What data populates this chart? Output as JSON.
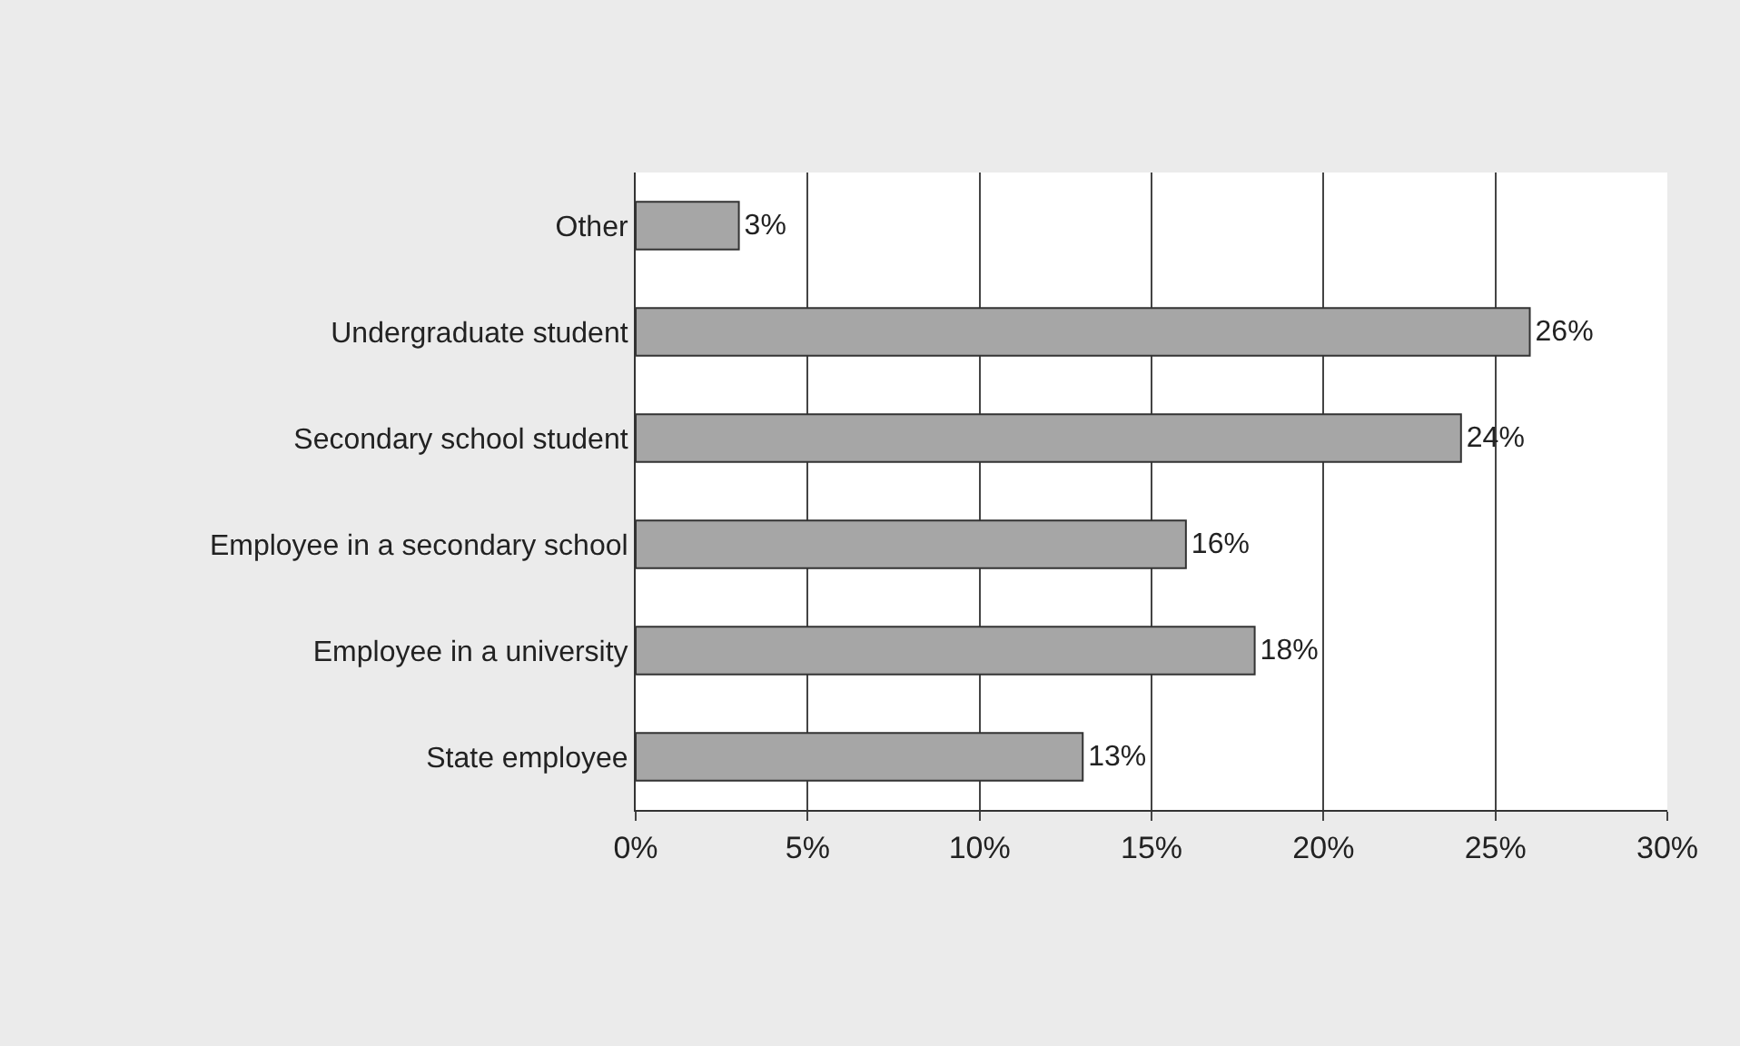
{
  "chart_data": {
    "type": "bar",
    "orientation": "horizontal",
    "categories": [
      "Other",
      "Undergraduate student",
      "Secondary school student",
      "Employee in a secondary school",
      "Employee in a university",
      "State employee"
    ],
    "values": [
      3,
      26,
      24,
      16,
      18,
      13
    ],
    "value_labels": [
      "3%",
      "26%",
      "24%",
      "16%",
      "18%",
      "13%"
    ],
    "color": "#a6a6a6",
    "xlim": [
      0,
      30
    ],
    "xticks": [
      {
        "value": 0,
        "label": "0%"
      },
      {
        "value": 5,
        "label": "5%"
      },
      {
        "value": 10,
        "label": "10%"
      },
      {
        "value": 15,
        "label": "15%"
      },
      {
        "value": 20,
        "label": "20%"
      },
      {
        "value": 25,
        "label": "25%"
      },
      {
        "value": 30,
        "label": "30%"
      }
    ],
    "grid": "x",
    "legend": false
  }
}
